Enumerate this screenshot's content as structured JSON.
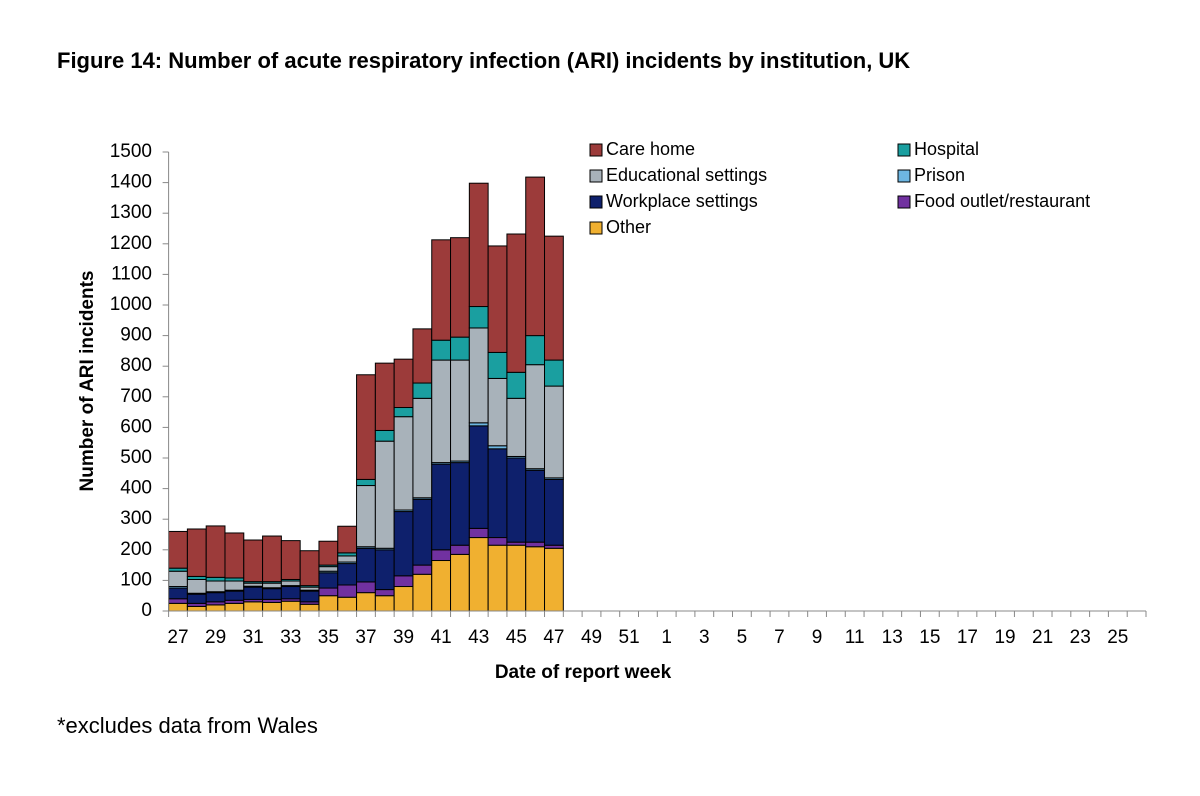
{
  "chart_data": {
    "type": "stacked_bar",
    "title": "Figure 14: Number of acute respiratory infection (ARI) incidents by institution, UK",
    "xlabel": "Date of report week",
    "ylabel": "Number of ARI incidents",
    "footnote": "*excludes data from Wales",
    "categories": [
      "27",
      null,
      "29",
      null,
      "31",
      null,
      "33",
      null,
      "35",
      null,
      "37",
      null,
      "39",
      null,
      "41",
      null,
      "43",
      null,
      "45",
      null,
      "47",
      null,
      "49",
      null,
      "51",
      null,
      "1",
      null,
      "3",
      null,
      "5",
      null,
      "7",
      null,
      "9",
      null,
      "11",
      null,
      "13",
      null,
      "15",
      null,
      "17",
      null,
      "19",
      null,
      "21",
      null,
      "23",
      null,
      "25",
      null
    ],
    "ylim": [
      0,
      1500
    ],
    "yticks": [
      0,
      100,
      200,
      300,
      400,
      500,
      600,
      700,
      800,
      900,
      1000,
      1100,
      1200,
      1300,
      1400,
      1500
    ],
    "legend_columns": 2,
    "series": [
      {
        "name": "Care home",
        "color": "#9c3b3a",
        "values": [
          120,
          155,
          168,
          147,
          136,
          149,
          127,
          114,
          78,
          87,
          342,
          220,
          158,
          177,
          328,
          325,
          403,
          348,
          452,
          518,
          405,
          null,
          null,
          null,
          null,
          null,
          null,
          null,
          null,
          null,
          null,
          null,
          null,
          null,
          null,
          null,
          null,
          null,
          null,
          null,
          null,
          null,
          null,
          null,
          null,
          null,
          null,
          null,
          null,
          null,
          null,
          null
        ]
      },
      {
        "name": "Hospital",
        "color": "#1a9fa0",
        "values": [
          10,
          10,
          12,
          10,
          5,
          5,
          5,
          5,
          5,
          10,
          20,
          35,
          30,
          50,
          65,
          75,
          70,
          85,
          85,
          95,
          85,
          null,
          null,
          null,
          null,
          null,
          null,
          null,
          null,
          null,
          null,
          null,
          null,
          null,
          null,
          null,
          null,
          null,
          null,
          null,
          null,
          null,
          null,
          null,
          null,
          null,
          null,
          null,
          null,
          null,
          null,
          null
        ]
      },
      {
        "name": "Educational settings",
        "color": "#a8b2ba",
        "values": [
          50,
          45,
          35,
          30,
          10,
          15,
          15,
          10,
          15,
          20,
          200,
          350,
          305,
          325,
          335,
          330,
          310,
          220,
          190,
          340,
          300,
          null,
          null,
          null,
          null,
          null,
          null,
          null,
          null,
          null,
          null,
          null,
          null,
          null,
          null,
          null,
          null,
          null,
          null,
          null,
          null,
          null,
          null,
          null,
          null,
          null,
          null,
          null,
          null,
          null,
          null,
          null
        ]
      },
      {
        "name": "Prison",
        "color": "#6db6e2",
        "values": [
          5,
          3,
          3,
          3,
          3,
          3,
          3,
          3,
          5,
          5,
          5,
          5,
          5,
          5,
          5,
          5,
          10,
          10,
          5,
          5,
          5,
          null,
          null,
          null,
          null,
          null,
          null,
          null,
          null,
          null,
          null,
          null,
          null,
          null,
          null,
          null,
          null,
          null,
          null,
          null,
          null,
          null,
          null,
          null,
          null,
          null,
          null,
          null,
          null,
          null,
          null,
          null
        ]
      },
      {
        "name": "Workplace settings",
        "color": "#0e206c",
        "values": [
          35,
          30,
          30,
          30,
          40,
          35,
          40,
          35,
          50,
          70,
          110,
          130,
          210,
          215,
          280,
          270,
          335,
          290,
          275,
          235,
          215,
          null,
          null,
          null,
          null,
          null,
          null,
          null,
          null,
          null,
          null,
          null,
          null,
          null,
          null,
          null,
          null,
          null,
          null,
          null,
          null,
          null,
          null,
          null,
          null,
          null,
          null,
          null,
          null,
          null,
          null,
          null
        ]
      },
      {
        "name": "Food outlet/restaurant",
        "color": "#7131a0",
        "values": [
          15,
          10,
          10,
          10,
          8,
          10,
          8,
          8,
          25,
          40,
          35,
          20,
          35,
          30,
          35,
          30,
          30,
          25,
          10,
          15,
          10,
          null,
          null,
          null,
          null,
          null,
          null,
          null,
          null,
          null,
          null,
          null,
          null,
          null,
          null,
          null,
          null,
          null,
          null,
          null,
          null,
          null,
          null,
          null,
          null,
          null,
          null,
          null,
          null,
          null,
          null,
          null
        ]
      },
      {
        "name": "Other",
        "color": "#f0b030",
        "values": [
          25,
          15,
          20,
          25,
          30,
          28,
          32,
          22,
          50,
          45,
          60,
          50,
          80,
          120,
          165,
          185,
          240,
          215,
          215,
          210,
          205,
          null,
          null,
          null,
          null,
          null,
          null,
          null,
          null,
          null,
          null,
          null,
          null,
          null,
          null,
          null,
          null,
          null,
          null,
          null,
          null,
          null,
          null,
          null,
          null,
          null,
          null,
          null,
          null,
          null,
          null,
          null
        ]
      }
    ]
  }
}
